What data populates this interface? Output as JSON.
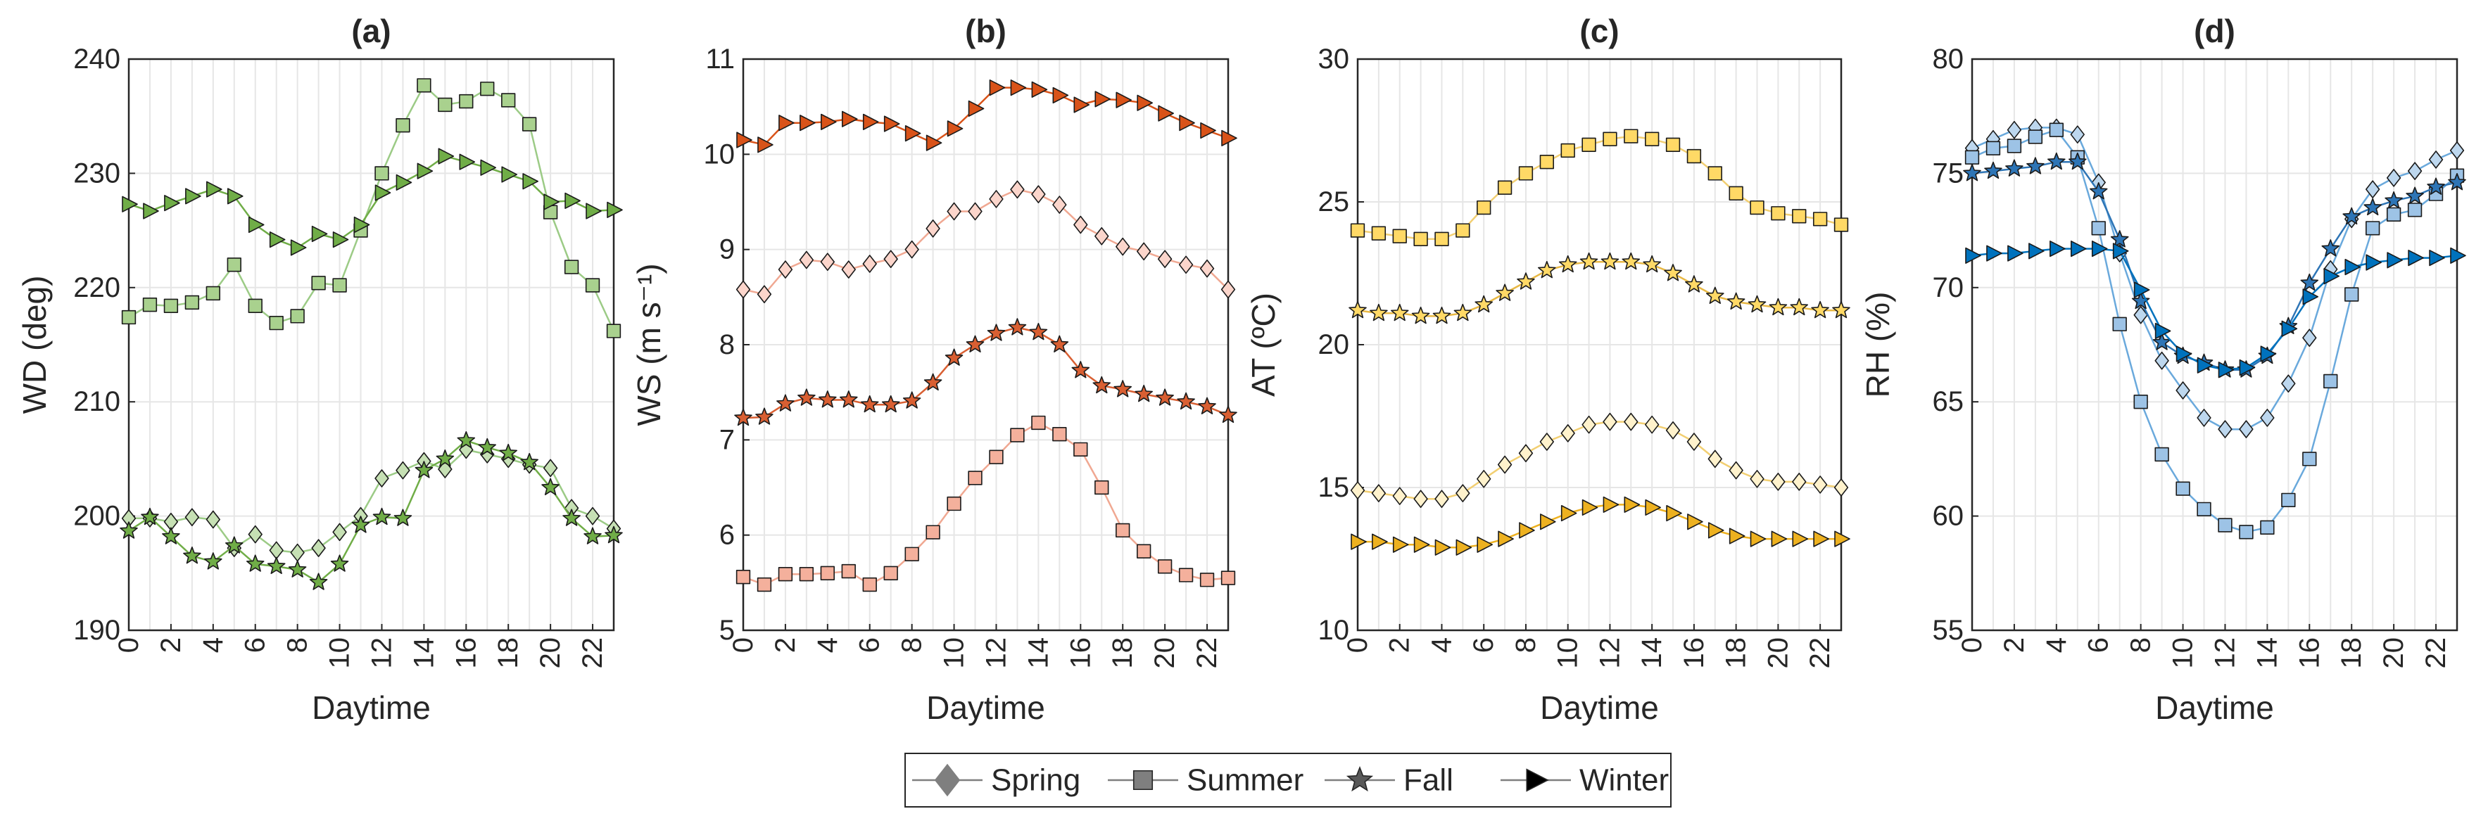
{
  "figure": {
    "legend": {
      "items": [
        {
          "label": "Spring",
          "marker": "diamond"
        },
        {
          "label": "Summer",
          "marker": "square"
        },
        {
          "label": "Fall",
          "marker": "star"
        },
        {
          "label": "Winter",
          "marker": "triangle-right"
        }
      ]
    }
  },
  "chart_data": [
    {
      "type": "line",
      "title": "(a)",
      "xlabel": "Daytime",
      "ylabel": "WD (deg)",
      "ylim": [
        190,
        240
      ],
      "yticks": [
        190,
        200,
        210,
        220,
        230,
        240
      ],
      "xlim": [
        0,
        23
      ],
      "xticks": [
        0,
        2,
        4,
        6,
        8,
        10,
        12,
        14,
        16,
        18,
        20,
        22
      ],
      "grid": true,
      "x": [
        0,
        1,
        2,
        3,
        4,
        5,
        6,
        7,
        8,
        9,
        10,
        11,
        12,
        13,
        14,
        15,
        16,
        17,
        18,
        19,
        20,
        21,
        22,
        23
      ],
      "series": [
        {
          "name": "Spring",
          "marker": "diamond",
          "color": "#c6e0b4",
          "line": "#9ccb86",
          "values": [
            199.8,
            199.8,
            199.5,
            199.9,
            199.7,
            197.2,
            198.4,
            197.0,
            196.8,
            197.2,
            198.6,
            200.0,
            203.3,
            204.0,
            204.8,
            204.1,
            205.8,
            205.4,
            205.0,
            204.5,
            204.2,
            200.7,
            200.0,
            198.9
          ]
        },
        {
          "name": "Summer",
          "marker": "square",
          "color": "#a9d18e",
          "line": "#9ccb86",
          "values": [
            217.4,
            218.5,
            218.4,
            218.7,
            219.5,
            222.0,
            218.4,
            216.9,
            217.5,
            220.4,
            220.2,
            225.0,
            230.0,
            234.2,
            237.7,
            236.0,
            236.3,
            237.4,
            236.4,
            234.3,
            226.6,
            221.8,
            220.2,
            216.2
          ]
        },
        {
          "name": "Fall",
          "marker": "star",
          "color": "#70ad47",
          "line": "#70ad47",
          "values": [
            198.7,
            199.9,
            198.2,
            196.5,
            196.0,
            197.4,
            195.8,
            195.6,
            195.3,
            194.2,
            195.8,
            199.2,
            199.9,
            199.8,
            204.0,
            205.0,
            206.6,
            206.0,
            205.5,
            204.7,
            202.5,
            199.8,
            198.2,
            198.3
          ]
        },
        {
          "name": "Winter",
          "marker": "triangle-right",
          "color": "#70ad47",
          "line": "#70ad47",
          "values": [
            227.3,
            226.7,
            227.4,
            228.0,
            228.6,
            228.0,
            225.5,
            224.2,
            223.5,
            224.7,
            224.2,
            225.5,
            228.3,
            229.2,
            230.2,
            231.5,
            231.0,
            230.5,
            229.9,
            229.3,
            227.5,
            227.6,
            226.7,
            226.8
          ]
        }
      ]
    },
    {
      "type": "line",
      "title": "(b)",
      "xlabel": "Daytime",
      "ylabel": "WS (m s⁻¹)",
      "ylim": [
        5,
        11
      ],
      "yticks": [
        5,
        6,
        7,
        8,
        9,
        10,
        11
      ],
      "xlim": [
        0,
        23
      ],
      "xticks": [
        0,
        2,
        4,
        6,
        8,
        10,
        12,
        14,
        16,
        18,
        20,
        22
      ],
      "grid": true,
      "x": [
        0,
        1,
        2,
        3,
        4,
        5,
        6,
        7,
        8,
        9,
        10,
        11,
        12,
        13,
        14,
        15,
        16,
        17,
        18,
        19,
        20,
        21,
        22,
        23
      ],
      "series": [
        {
          "name": "Spring",
          "marker": "diamond",
          "color": "#fbd5cb",
          "line": "#f0a892",
          "values": [
            8.58,
            8.53,
            8.79,
            8.89,
            8.87,
            8.79,
            8.85,
            8.9,
            9.0,
            9.22,
            9.4,
            9.4,
            9.53,
            9.63,
            9.58,
            9.47,
            9.26,
            9.14,
            9.03,
            8.98,
            8.9,
            8.84,
            8.8,
            8.58
          ]
        },
        {
          "name": "Summer",
          "marker": "square",
          "color": "#f4b09c",
          "line": "#f0a892",
          "values": [
            5.56,
            5.48,
            5.59,
            5.59,
            5.6,
            5.62,
            5.48,
            5.6,
            5.8,
            6.03,
            6.33,
            6.6,
            6.82,
            7.05,
            7.18,
            7.06,
            6.9,
            6.5,
            6.05,
            5.83,
            5.67,
            5.58,
            5.53,
            5.55
          ]
        },
        {
          "name": "Fall",
          "marker": "star",
          "color": "#d95f32",
          "line": "#d95f32",
          "values": [
            7.23,
            7.24,
            7.38,
            7.44,
            7.42,
            7.42,
            7.37,
            7.37,
            7.41,
            7.6,
            7.86,
            8.0,
            8.12,
            8.18,
            8.13,
            8.0,
            7.73,
            7.57,
            7.53,
            7.48,
            7.44,
            7.4,
            7.35,
            7.26
          ]
        },
        {
          "name": "Winter",
          "marker": "triangle-right",
          "color": "#d95319",
          "line": "#d95319",
          "values": [
            10.15,
            10.1,
            10.33,
            10.33,
            10.34,
            10.37,
            10.34,
            10.32,
            10.22,
            10.12,
            10.27,
            10.48,
            10.7,
            10.7,
            10.68,
            10.62,
            10.52,
            10.58,
            10.57,
            10.54,
            10.43,
            10.33,
            10.25,
            10.17
          ]
        }
      ]
    },
    {
      "type": "line",
      "title": "(c)",
      "xlabel": "Daytime",
      "ylabel": "AT (ºC)",
      "ylim": [
        10,
        30
      ],
      "yticks": [
        10,
        15,
        20,
        25,
        30
      ],
      "xlim": [
        0,
        23
      ],
      "xticks": [
        0,
        2,
        4,
        6,
        8,
        10,
        12,
        14,
        16,
        18,
        20,
        22
      ],
      "grid": true,
      "x": [
        0,
        1,
        2,
        3,
        4,
        5,
        6,
        7,
        8,
        9,
        10,
        11,
        12,
        13,
        14,
        15,
        16,
        17,
        18,
        19,
        20,
        21,
        22,
        23
      ],
      "series": [
        {
          "name": "Spring",
          "marker": "diamond",
          "color": "#fff2cc",
          "line": "#f2cf72",
          "values": [
            14.9,
            14.8,
            14.7,
            14.6,
            14.6,
            14.8,
            15.3,
            15.8,
            16.2,
            16.6,
            16.9,
            17.2,
            17.3,
            17.3,
            17.2,
            17.0,
            16.6,
            16.0,
            15.6,
            15.3,
            15.2,
            15.2,
            15.1,
            15.0
          ]
        },
        {
          "name": "Summer",
          "marker": "square",
          "color": "#ffd966",
          "line": "#f2cf72",
          "values": [
            24.0,
            23.9,
            23.8,
            23.7,
            23.7,
            24.0,
            24.8,
            25.5,
            26.0,
            26.4,
            26.8,
            27.0,
            27.2,
            27.3,
            27.2,
            27.0,
            26.6,
            26.0,
            25.3,
            24.8,
            24.6,
            24.5,
            24.4,
            24.2
          ]
        },
        {
          "name": "Fall",
          "marker": "star",
          "color": "#ffd966",
          "line": "#e8b844",
          "values": [
            21.2,
            21.1,
            21.1,
            21.0,
            21.0,
            21.1,
            21.4,
            21.8,
            22.2,
            22.6,
            22.8,
            22.9,
            22.9,
            22.9,
            22.8,
            22.5,
            22.1,
            21.7,
            21.5,
            21.4,
            21.3,
            21.3,
            21.2,
            21.2
          ]
        },
        {
          "name": "Winter",
          "marker": "triangle-right",
          "color": "#edb120",
          "line": "#edb120",
          "values": [
            13.1,
            13.1,
            13.0,
            13.0,
            12.9,
            12.9,
            13.0,
            13.2,
            13.5,
            13.8,
            14.1,
            14.3,
            14.4,
            14.4,
            14.3,
            14.1,
            13.8,
            13.5,
            13.3,
            13.2,
            13.2,
            13.2,
            13.2,
            13.2
          ]
        }
      ]
    },
    {
      "type": "line",
      "title": "(d)",
      "xlabel": "Daytime",
      "ylabel": "RH (%)",
      "ylim": [
        55,
        80
      ],
      "yticks": [
        55,
        60,
        65,
        70,
        75,
        80
      ],
      "xlim": [
        0,
        23
      ],
      "xticks": [
        0,
        2,
        4,
        6,
        8,
        10,
        12,
        14,
        16,
        18,
        20,
        22
      ],
      "grid": true,
      "x": [
        0,
        1,
        2,
        3,
        4,
        5,
        6,
        7,
        8,
        9,
        10,
        11,
        12,
        13,
        14,
        15,
        16,
        17,
        18,
        19,
        20,
        21,
        22,
        23
      ],
      "series": [
        {
          "name": "Spring",
          "marker": "diamond",
          "color": "#bdd7ee",
          "line": "#6aa9dc",
          "values": [
            76.1,
            76.5,
            76.9,
            77.0,
            77.0,
            76.7,
            74.6,
            71.5,
            68.8,
            66.8,
            65.5,
            64.3,
            63.8,
            63.8,
            64.3,
            65.8,
            67.8,
            70.8,
            73.0,
            74.3,
            74.8,
            75.1,
            75.6,
            76.0
          ]
        },
        {
          "name": "Summer",
          "marker": "square",
          "color": "#9dc3e6",
          "line": "#6aa9dc",
          "values": [
            75.7,
            76.1,
            76.2,
            76.6,
            76.9,
            75.7,
            72.6,
            68.4,
            65.0,
            62.7,
            61.2,
            60.3,
            59.6,
            59.3,
            59.5,
            60.7,
            62.5,
            65.9,
            69.7,
            72.6,
            73.2,
            73.4,
            74.1,
            74.9
          ]
        },
        {
          "name": "Fall",
          "marker": "star",
          "color": "#2e75b6",
          "line": "#2e75b6",
          "values": [
            75.0,
            75.1,
            75.2,
            75.3,
            75.5,
            75.5,
            74.2,
            72.1,
            69.4,
            67.6,
            67.0,
            66.7,
            66.4,
            66.4,
            67.0,
            68.3,
            70.2,
            71.7,
            73.1,
            73.5,
            73.8,
            74.0,
            74.4,
            74.6
          ]
        },
        {
          "name": "Winter",
          "marker": "triangle-right",
          "color": "#0072bd",
          "line": "#0072bd",
          "values": [
            71.4,
            71.5,
            71.5,
            71.6,
            71.7,
            71.7,
            71.7,
            71.6,
            69.9,
            68.1,
            67.1,
            66.6,
            66.4,
            66.5,
            67.1,
            68.2,
            69.6,
            70.5,
            70.9,
            71.1,
            71.2,
            71.3,
            71.3,
            71.4
          ]
        }
      ]
    }
  ]
}
